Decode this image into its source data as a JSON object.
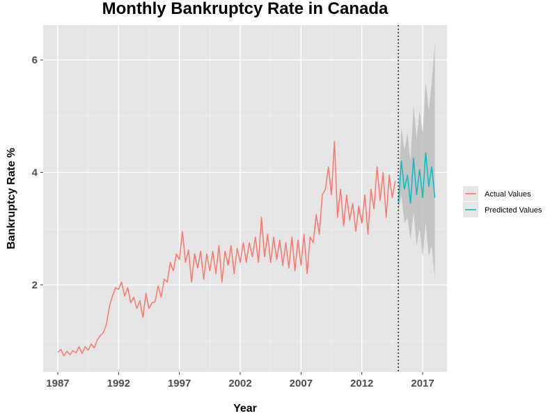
{
  "chart_data": {
    "type": "line",
    "title": "Monthly Bankruptcy Rate in Canada",
    "xlabel": "Year",
    "ylabel": "Bankruptcy Rate %",
    "xlim": [
      1985.8,
      2019.0
    ],
    "ylim": [
      0.45,
      6.62
    ],
    "x_ticks": [
      1987,
      1992,
      1997,
      2002,
      2007,
      2012,
      2017
    ],
    "x_tick_labels": [
      "1987",
      "1992",
      "1997",
      "2002",
      "2007",
      "2012",
      "2017"
    ],
    "y_ticks": [
      2,
      4,
      6
    ],
    "y_tick_labels": [
      "2",
      "4",
      "6"
    ],
    "y_minor_ticks": [
      1,
      3,
      5
    ],
    "x_minor_ticks": [
      1989.5,
      1994.5,
      1999.5,
      2004.5,
      2009.5,
      2014.5
    ],
    "grid": true,
    "background": "#e5e5e5",
    "legend_position": "right",
    "forecast_start": 2015.0,
    "forecast_marker": "dotted vertical line",
    "series": [
      {
        "name": "Actual Values",
        "color": "#f8766d",
        "x": [
          1987.0,
          1987.25,
          1987.5,
          1987.75,
          1988.0,
          1988.25,
          1988.5,
          1988.75,
          1989.0,
          1989.25,
          1989.5,
          1989.75,
          1990.0,
          1990.25,
          1990.5,
          1990.75,
          1991.0,
          1991.25,
          1991.5,
          1991.75,
          1992.0,
          1992.25,
          1992.5,
          1992.75,
          1993.0,
          1993.25,
          1993.5,
          1993.75,
          1994.0,
          1994.25,
          1994.5,
          1994.75,
          1995.0,
          1995.25,
          1995.5,
          1995.75,
          1996.0,
          1996.25,
          1996.5,
          1996.75,
          1997.0,
          1997.25,
          1997.5,
          1997.75,
          1998.0,
          1998.25,
          1998.5,
          1998.75,
          1999.0,
          1999.25,
          1999.5,
          1999.75,
          2000.0,
          2000.25,
          2000.5,
          2000.75,
          2001.0,
          2001.25,
          2001.5,
          2001.75,
          2002.0,
          2002.25,
          2002.5,
          2002.75,
          2003.0,
          2003.25,
          2003.5,
          2003.75,
          2004.0,
          2004.25,
          2004.5,
          2004.75,
          2005.0,
          2005.25,
          2005.5,
          2005.75,
          2006.0,
          2006.25,
          2006.5,
          2006.75,
          2007.0,
          2007.25,
          2007.5,
          2007.75,
          2008.0,
          2008.25,
          2008.5,
          2008.75,
          2009.0,
          2009.25,
          2009.5,
          2009.75,
          2010.0,
          2010.25,
          2010.5,
          2010.75,
          2011.0,
          2011.25,
          2011.5,
          2011.75,
          2012.0,
          2012.25,
          2012.5,
          2012.75,
          2013.0,
          2013.25,
          2013.5,
          2013.75,
          2014.0,
          2014.25,
          2014.5,
          2014.75
        ],
        "values": [
          0.8,
          0.85,
          0.74,
          0.82,
          0.76,
          0.83,
          0.79,
          0.9,
          0.78,
          0.9,
          0.84,
          0.95,
          0.88,
          1.02,
          1.1,
          1.15,
          1.3,
          1.62,
          1.8,
          1.95,
          1.92,
          2.05,
          1.8,
          1.95,
          1.68,
          1.78,
          1.58,
          1.72,
          1.42,
          1.85,
          1.58,
          1.68,
          1.7,
          1.98,
          1.78,
          2.1,
          2.05,
          2.4,
          2.25,
          2.55,
          2.45,
          2.95,
          2.4,
          2.62,
          2.05,
          2.55,
          2.3,
          2.6,
          2.1,
          2.55,
          2.25,
          2.6,
          2.2,
          2.7,
          2.05,
          2.6,
          2.35,
          2.7,
          2.2,
          2.65,
          2.4,
          2.75,
          2.4,
          2.75,
          2.5,
          2.85,
          2.4,
          3.2,
          2.5,
          2.9,
          2.4,
          2.85,
          2.45,
          2.8,
          2.35,
          2.75,
          2.3,
          2.85,
          2.25,
          2.8,
          2.35,
          2.9,
          2.2,
          2.85,
          2.75,
          3.25,
          2.9,
          3.6,
          3.7,
          4.1,
          3.6,
          4.55,
          3.2,
          3.7,
          3.05,
          3.6,
          3.15,
          3.45,
          2.95,
          3.4,
          3.1,
          3.6,
          2.9,
          3.7,
          3.35,
          4.1,
          3.5,
          4.0,
          3.2,
          3.95,
          3.55,
          3.85
        ]
      },
      {
        "name": "Predicted Values",
        "color": "#00bfc4",
        "x": [
          2015.0,
          2015.25,
          2015.5,
          2015.75,
          2016.0,
          2016.25,
          2016.5,
          2016.75,
          2017.0,
          2017.25,
          2017.5,
          2017.75,
          2018.0
        ],
        "values": [
          3.45,
          4.2,
          3.7,
          3.95,
          3.45,
          4.25,
          3.6,
          4.05,
          3.55,
          4.35,
          3.75,
          4.1,
          3.55
        ],
        "ci_lower": [
          3.3,
          3.6,
          3.1,
          3.2,
          2.8,
          3.3,
          2.7,
          3.0,
          2.5,
          3.1,
          2.5,
          2.7,
          2.1
        ],
        "ci_upper": [
          3.6,
          4.8,
          4.4,
          4.7,
          4.2,
          5.2,
          4.6,
          5.1,
          4.7,
          5.6,
          5.1,
          5.6,
          6.3
        ]
      }
    ],
    "confidence_band_color": "#bdbdbd"
  }
}
